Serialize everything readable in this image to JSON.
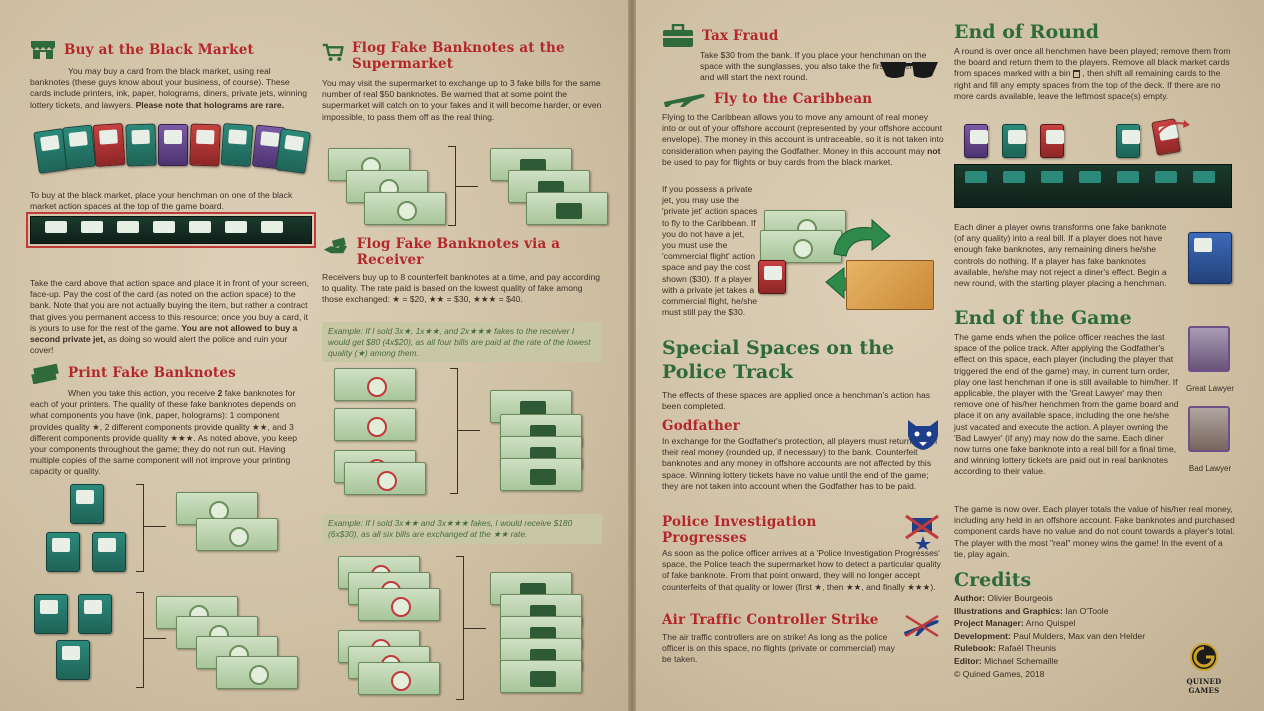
{
  "left": {
    "buy_black_market": {
      "title": "Buy at the Black Market",
      "intro": "You may buy a card from the black market, using real banknotes (these guys know about your business, of course). These cards include printers, ink, paper, holograms, diners, private jets, winning lottery tickets, and lawyers.",
      "intro_bold": "Please note that holograms are rare.",
      "place": "To buy at the black market, place your henchman on one of the black market action spaces at the top of the game board.",
      "take": "Take the card above that action space and place it in front of your screen, face-up. Pay the cost of the card (as noted on the action space) to the bank. Note that you are not actually buying the item, but rather a contract that gives you permanent access to this resource; once you buy a card, it is yours to use for the rest of the game.",
      "take_bold": "You are not allowed to buy a second private jet,",
      "take_end": "as doing so would alert the police and ruin your cover!"
    },
    "print": {
      "title": "Print Fake Banknotes",
      "text_a": "When you take this action, you receive",
      "text_num": "2",
      "text_b": "fake banknotes for each of your printers. The quality of these fake banknotes depends on what components you have (ink, paper, holograms): 1 component provides quality ★, 2 different components provide quality ★★, and 3 different components provide quality ★★★. As noted above, you keep your components throughout the game; they do not run out. Having multiple copies of the same component will not improve your printing capacity or quality."
    },
    "supermarket": {
      "title": "Flog Fake Banknotes at the Supermarket",
      "text": "You may visit the supermarket to exchange up to 3 fake bills for the same number of real $50 banknotes. Be warned that at some point the supermarket will catch on to your fakes and it will become harder, or even impossible, to pass them off as the real thing."
    },
    "receiver": {
      "title": "Flog Fake Banknotes via a Receiver",
      "text": "Receivers buy up to 8 counterfeit banknotes at a time, and pay according to quality. The rate paid is based on the lowest quality of fake among those exchanged: ★ = $20, ★★ = $30, ★★★ = $40.",
      "example1": "Example: If I sold 3x★, 1x★★, and 2x★★★ fakes to the receiver I would get $80 (4x$20), as all four bills are paid at the rate of the lowest quality (★) among them.",
      "example2": "Example: If I sold 3x★★ and 3x★★★ fakes, I would receive $180 (6x$30), as all six bills are exchanged at the ★★ rate."
    }
  },
  "right": {
    "tax_fraud": {
      "title": "Tax Fraud",
      "text": "Take $30 from the bank. If you place your henchman on the space with the sunglasses, you also take the first-player pawn and will start the next round."
    },
    "caribbean": {
      "title": "Fly to the Caribbean",
      "text_a": "Flying to the Caribbean allows you to move any amount of real money into or out of your offshore account (represented by your offshore account envelope). The money in this account is untraceable, so it is not taken into consideration when paying the Godfather. Money in this account may",
      "text_bold": "not",
      "text_b": "be used to pay for flights or buy cards from the black market.",
      "jet": "If you possess a private jet, you may use the 'private jet' action spaces to fly to the Caribbean. If you do not have a jet, you must use the 'commercial flight' action space and pay the cost shown ($30). If a player with a private jet takes a commercial flight, he/she must still pay the $30."
    },
    "special": {
      "title": "Special Spaces on the Police Track",
      "text": "The effects of these spaces are applied once a henchman's action has been completed."
    },
    "godfather": {
      "title": "Godfather",
      "text": "In exchange for the Godfather's protection, all players must return half of their real money (rounded up, if necessary) to the bank. Counterfeit banknotes and any money in offshore accounts are not affected by this space. Winning lottery tickets have no value until the end of the game; they are not taken into account when the Godfather has to be paid."
    },
    "police": {
      "title": "Police Investigation Progresses",
      "text": "As soon as the police officer arrives at a 'Police Investigation Progresses' space, the Police teach the supermarket how to detect a particular quality of fake banknote. From that point onward, they will no longer accept counterfeits of that quality or lower (first ★, then ★★, and finally ★★★)."
    },
    "strike": {
      "title": "Air Traffic Controller Strike",
      "text": "The air traffic controllers are on strike! As long as the police officer is on this space, no flights (private or commercial) may be taken."
    },
    "end_round": {
      "title": "End of Round",
      "text_a": "A round is over once all henchmen have been played; remove them from the board and return them to the players. Remove all black market cards from spaces marked with a bin",
      "text_b": ", then shift all remaining cards to the right and fill any empty spaces from the top of the deck. If there are no more cards available, leave the leftmost space(s) empty.",
      "diner": "Each diner a player owns transforms one fake banknote (of any quality) into a real bill. If a player does not have enough fake banknotes, any remaining diners he/she controls do nothing. If a player has fake banknotes available, he/she may not reject a diner's effect. Begin a new round, with the starting player placing a henchman."
    },
    "end_game": {
      "title": "End of the Game",
      "text": "The game ends when the police officer reaches the last space of the police track. After applying the Godfather's effect on this space, each player (including the player that triggered the end of the game) may, in current turn order, play one last henchman if one is still available to him/her. If applicable, the player with the 'Great Lawyer' may then remove one of his/her henchmen from the game board and place it on any available space, including the one he/she just vacated and execute the action. A player owning the 'Bad Lawyer' (if any) may now do the same. Each diner now turns one fake banknote into a real bill for a final time, and winning lottery tickets are paid out in real banknotes according to their value.",
      "text2": "The game is now over. Each player totals the value of his/her real money, including any held in an offshore account. Fake banknotes and purchased component cards have no value and do not count towards a player's total. The player with the most \"real\" money wins the game! In the event of a tie, play again.",
      "great_lawyer": "Great Lawyer",
      "bad_lawyer": "Bad Lawyer"
    },
    "credits": {
      "title": "Credits",
      "lines": [
        {
          "k": "Author:",
          "v": "Olivier Bourgeois"
        },
        {
          "k": "Illustrations and Graphics:",
          "v": "Ian O'Toole"
        },
        {
          "k": "Project Manager:",
          "v": "Arno Quispel"
        },
        {
          "k": "Development:",
          "v": "Paul Mulders, Max van den Helder"
        },
        {
          "k": "Rulebook:",
          "v": "Rafaël Theunis"
        },
        {
          "k": "Editor:",
          "v": "Michael Schemaille"
        }
      ],
      "copyright": "© Quined Games, 2018",
      "logo_text": "QUINED GAMES"
    }
  },
  "colors": {
    "red_heading": "#b3262a",
    "green_heading": "#2f6a3c",
    "paper": "#cfc0a4"
  }
}
